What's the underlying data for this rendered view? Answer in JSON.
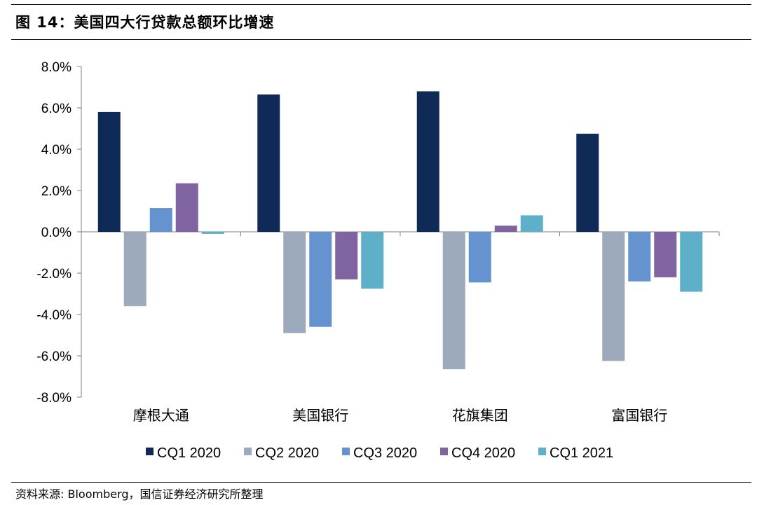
{
  "figure": {
    "title": "图 14：美国四大行贷款总额环比增速",
    "source": "资料来源: Bloomberg，国信证券经济研究所整理"
  },
  "chart_data": {
    "type": "bar",
    "title": "",
    "xlabel": "",
    "ylabel": "",
    "categories": [
      "摩根大通",
      "美国银行",
      "花旗集团",
      "富国银行"
    ],
    "ylim": [
      -8.0,
      8.0
    ],
    "yticks": [
      8.0,
      6.0,
      4.0,
      2.0,
      0.0,
      -2.0,
      -4.0,
      -6.0,
      -8.0
    ],
    "ytick_labels": [
      "8.0%",
      "6.0%",
      "4.0%",
      "2.0%",
      "0.0%",
      "-2.0%",
      "-4.0%",
      "-6.0%",
      "-8.0%"
    ],
    "grid": false,
    "legend_position": "bottom",
    "series": [
      {
        "name": "CQ1 2020",
        "color": "#0f2a57",
        "values": [
          5.8,
          6.65,
          6.8,
          4.75
        ]
      },
      {
        "name": "CQ2 2020",
        "color": "#9daabb",
        "values": [
          -3.6,
          -4.9,
          -6.65,
          -6.25
        ]
      },
      {
        "name": "CQ3 2020",
        "color": "#6593cf",
        "values": [
          1.15,
          -4.6,
          -2.45,
          -2.4
        ]
      },
      {
        "name": "CQ4 2020",
        "color": "#8064a2",
        "values": [
          2.35,
          -2.3,
          0.3,
          -2.2
        ]
      },
      {
        "name": "CQ1 2021",
        "color": "#5eb0c8",
        "values": [
          -0.1,
          -2.75,
          0.8,
          -2.9
        ]
      }
    ]
  }
}
